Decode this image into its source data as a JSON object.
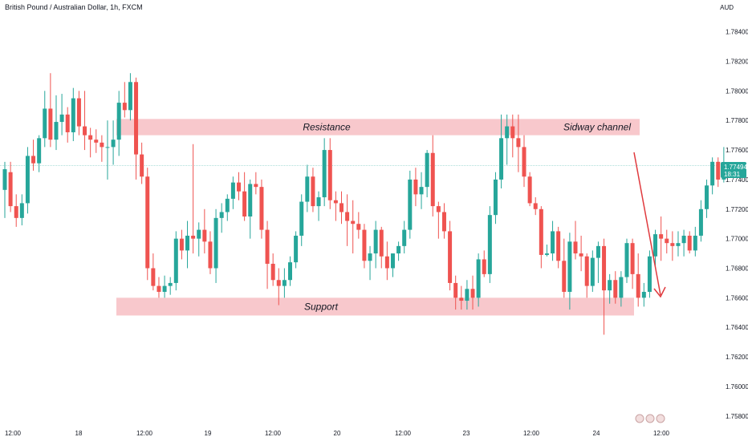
{
  "header": {
    "title": "British Pound / Australian Dollar, 1h, FXCM",
    "currency": "AUD"
  },
  "chart_data": {
    "type": "candlestick",
    "title": "British Pound / Australian Dollar, 1h, FXCM",
    "ylim": [
      1.7575,
      1.7855
    ],
    "y_ticks": [
      "1.78400",
      "1.78200",
      "1.78000",
      "1.77800",
      "1.77600",
      "1.77400",
      "1.77200",
      "1.77000",
      "1.76800",
      "1.76600",
      "1.76400",
      "1.76200",
      "1.76000",
      "1.75800"
    ],
    "x_ticks": [
      "12:00",
      "18",
      "12:00",
      "19",
      "12:00",
      "20",
      "12:00",
      "23",
      "12:00",
      "24",
      "12:00"
    ],
    "grid": false,
    "last_price": {
      "value": "1.77494",
      "countdown": "18:31"
    },
    "zones": [
      {
        "label": "Resistance",
        "low": 1.777,
        "high": 1.7781,
        "color": "#f8c8cc"
      },
      {
        "label": "Support",
        "low": 1.7648,
        "high": 1.766,
        "color": "#f8c8cc"
      }
    ],
    "annotation": {
      "text": "Sidway channel"
    },
    "colors": {
      "up": "#26a69a",
      "down": "#ef5350",
      "arrow": "#e03a3e"
    },
    "candles": [
      [
        1.7733,
        1.7752,
        1.7714,
        1.7747
      ],
      [
        1.7745,
        1.7752,
        1.7718,
        1.7722
      ],
      [
        1.7722,
        1.773,
        1.7708,
        1.7714
      ],
      [
        1.7714,
        1.773,
        1.7709,
        1.7724
      ],
      [
        1.7724,
        1.7762,
        1.7717,
        1.7756
      ],
      [
        1.7756,
        1.7767,
        1.7746,
        1.7751
      ],
      [
        1.7751,
        1.777,
        1.7745,
        1.7768
      ],
      [
        1.7768,
        1.78,
        1.7762,
        1.7788
      ],
      [
        1.7788,
        1.7812,
        1.7762,
        1.7767
      ],
      [
        1.7767,
        1.7797,
        1.776,
        1.7779
      ],
      [
        1.7779,
        1.7798,
        1.777,
        1.7784
      ],
      [
        1.7784,
        1.7789,
        1.7765,
        1.7772
      ],
      [
        1.7772,
        1.7802,
        1.7766,
        1.7795
      ],
      [
        1.7795,
        1.78,
        1.777,
        1.7776
      ],
      [
        1.7776,
        1.78,
        1.776,
        1.777
      ],
      [
        1.777,
        1.7775,
        1.7755,
        1.7767
      ],
      [
        1.7767,
        1.7774,
        1.7758,
        1.7765
      ],
      [
        1.7765,
        1.777,
        1.7752,
        1.7762
      ],
      [
        1.7762,
        1.778,
        1.774,
        1.7762
      ],
      [
        1.7762,
        1.778,
        1.775,
        1.7767
      ],
      [
        1.7767,
        1.78,
        1.7756,
        1.7792
      ],
      [
        1.7792,
        1.7806,
        1.7782,
        1.7787
      ],
      [
        1.7787,
        1.7812,
        1.778,
        1.7806
      ],
      [
        1.7806,
        1.7809,
        1.774,
        1.7757
      ],
      [
        1.7757,
        1.7765,
        1.7737,
        1.7742
      ],
      [
        1.7742,
        1.7748,
        1.7672,
        1.768
      ],
      [
        1.768,
        1.769,
        1.7665,
        1.7668
      ],
      [
        1.7668,
        1.7674,
        1.766,
        1.7664
      ],
      [
        1.7664,
        1.7675,
        1.766,
        1.7668
      ],
      [
        1.7668,
        1.7674,
        1.7662,
        1.767
      ],
      [
        1.767,
        1.7705,
        1.7665,
        1.77
      ],
      [
        1.77,
        1.7706,
        1.7686,
        1.7692
      ],
      [
        1.7692,
        1.7712,
        1.768,
        1.7702
      ],
      [
        1.7702,
        1.7764,
        1.769,
        1.77
      ],
      [
        1.77,
        1.7711,
        1.7688,
        1.7706
      ],
      [
        1.7706,
        1.772,
        1.769,
        1.7698
      ],
      [
        1.7698,
        1.7705,
        1.7676,
        1.768
      ],
      [
        1.768,
        1.772,
        1.767,
        1.7714
      ],
      [
        1.7714,
        1.7724,
        1.7704,
        1.7718
      ],
      [
        1.7718,
        1.773,
        1.7712,
        1.7727
      ],
      [
        1.7727,
        1.7742,
        1.772,
        1.7738
      ],
      [
        1.7738,
        1.7745,
        1.7726,
        1.7732
      ],
      [
        1.7732,
        1.7745,
        1.7712,
        1.7715
      ],
      [
        1.7715,
        1.774,
        1.77,
        1.7737
      ],
      [
        1.7737,
        1.7745,
        1.773,
        1.7735
      ],
      [
        1.7735,
        1.774,
        1.77,
        1.7706
      ],
      [
        1.7706,
        1.7712,
        1.7666,
        1.7683
      ],
      [
        1.7683,
        1.769,
        1.7668,
        1.7672
      ],
      [
        1.7672,
        1.768,
        1.7655,
        1.7668
      ],
      [
        1.7668,
        1.768,
        1.766,
        1.7672
      ],
      [
        1.7672,
        1.7688,
        1.7668,
        1.7684
      ],
      [
        1.7684,
        1.7705,
        1.768,
        1.7702
      ],
      [
        1.7702,
        1.773,
        1.7695,
        1.7725
      ],
      [
        1.7725,
        1.775,
        1.7718,
        1.7742
      ],
      [
        1.7742,
        1.7748,
        1.7718,
        1.7722
      ],
      [
        1.7722,
        1.7732,
        1.7712,
        1.7728
      ],
      [
        1.7728,
        1.7768,
        1.7722,
        1.776
      ],
      [
        1.776,
        1.7768,
        1.772,
        1.7726
      ],
      [
        1.7726,
        1.7732,
        1.7712,
        1.7724
      ],
      [
        1.7724,
        1.7732,
        1.771,
        1.7718
      ],
      [
        1.7718,
        1.773,
        1.7695,
        1.7712
      ],
      [
        1.7712,
        1.7726,
        1.769,
        1.771
      ],
      [
        1.771,
        1.7718,
        1.77,
        1.7706
      ],
      [
        1.7706,
        1.771,
        1.768,
        1.7685
      ],
      [
        1.7685,
        1.7695,
        1.7672,
        1.769
      ],
      [
        1.769,
        1.7712,
        1.768,
        1.7706
      ],
      [
        1.7706,
        1.7708,
        1.768,
        1.7688
      ],
      [
        1.7688,
        1.7698,
        1.7672,
        1.768
      ],
      [
        1.768,
        1.769,
        1.7674,
        1.769
      ],
      [
        1.769,
        1.7698,
        1.7685,
        1.7695
      ],
      [
        1.7695,
        1.7712,
        1.769,
        1.7706
      ],
      [
        1.7706,
        1.7746,
        1.77,
        1.774
      ],
      [
        1.774,
        1.7748,
        1.7722,
        1.773
      ],
      [
        1.773,
        1.7745,
        1.772,
        1.7735
      ],
      [
        1.7735,
        1.776,
        1.7728,
        1.7758
      ],
      [
        1.7758,
        1.777,
        1.7715,
        1.7722
      ],
      [
        1.7722,
        1.7725,
        1.77,
        1.7718
      ],
      [
        1.7718,
        1.7724,
        1.77,
        1.7705
      ],
      [
        1.7705,
        1.7712,
        1.7665,
        1.767
      ],
      [
        1.767,
        1.7675,
        1.7652,
        1.766
      ],
      [
        1.766,
        1.7668,
        1.7652,
        1.7658
      ],
      [
        1.7658,
        1.7672,
        1.7652,
        1.7666
      ],
      [
        1.7666,
        1.7675,
        1.7652,
        1.766
      ],
      [
        1.766,
        1.769,
        1.7654,
        1.7686
      ],
      [
        1.7686,
        1.7692,
        1.7674,
        1.7676
      ],
      [
        1.7676,
        1.7722,
        1.767,
        1.7716
      ],
      [
        1.7716,
        1.7745,
        1.771,
        1.774
      ],
      [
        1.774,
        1.7784,
        1.7734,
        1.7768
      ],
      [
        1.7768,
        1.7784,
        1.775,
        1.7776
      ],
      [
        1.7776,
        1.7784,
        1.7755,
        1.7768
      ],
      [
        1.7768,
        1.7784,
        1.7745,
        1.7762
      ],
      [
        1.7762,
        1.777,
        1.7735,
        1.7742
      ],
      [
        1.7742,
        1.7745,
        1.7722,
        1.7724
      ],
      [
        1.7724,
        1.7728,
        1.7716,
        1.772
      ],
      [
        1.772,
        1.7722,
        1.768,
        1.7689
      ],
      [
        1.7689,
        1.7696,
        1.7688,
        1.769
      ],
      [
        1.769,
        1.7712,
        1.7685,
        1.7705
      ],
      [
        1.7705,
        1.7708,
        1.768,
        1.7685
      ],
      [
        1.7685,
        1.77,
        1.766,
        1.7664
      ],
      [
        1.7664,
        1.7704,
        1.7652,
        1.7698
      ],
      [
        1.7698,
        1.7712,
        1.7686,
        1.769
      ],
      [
        1.769,
        1.7702,
        1.7678,
        1.7688
      ],
      [
        1.7688,
        1.769,
        1.766,
        1.7668
      ],
      [
        1.7668,
        1.7692,
        1.7664,
        1.7687
      ],
      [
        1.7687,
        1.7698,
        1.767,
        1.7695
      ],
      [
        1.7695,
        1.77,
        1.7635,
        1.7665
      ],
      [
        1.7665,
        1.7676,
        1.7656,
        1.7672
      ],
      [
        1.7672,
        1.7678,
        1.7656,
        1.766
      ],
      [
        1.766,
        1.7678,
        1.7654,
        1.7674
      ],
      [
        1.7674,
        1.77,
        1.767,
        1.7697
      ],
      [
        1.7697,
        1.77,
        1.7666,
        1.7676
      ],
      [
        1.7676,
        1.769,
        1.7654,
        1.766
      ],
      [
        1.766,
        1.767,
        1.7654,
        1.7664
      ],
      [
        1.7664,
        1.7692,
        1.766,
        1.7688
      ],
      [
        1.7688,
        1.7706,
        1.768,
        1.7703
      ],
      [
        1.7703,
        1.7715,
        1.7685,
        1.77
      ],
      [
        1.77,
        1.7706,
        1.769,
        1.7697
      ],
      [
        1.7697,
        1.7705,
        1.7685,
        1.7695
      ],
      [
        1.7695,
        1.7705,
        1.7688,
        1.7697
      ],
      [
        1.7697,
        1.7706,
        1.7688,
        1.7702
      ],
      [
        1.7702,
        1.7705,
        1.769,
        1.7692
      ],
      [
        1.7692,
        1.7708,
        1.7688,
        1.7702
      ],
      [
        1.7702,
        1.7726,
        1.7698,
        1.772
      ],
      [
        1.772,
        1.774,
        1.7714,
        1.7736
      ],
      [
        1.7736,
        1.7755,
        1.773,
        1.7752
      ],
      [
        1.7752,
        1.7755,
        1.7735,
        1.774
      ],
      [
        1.774,
        1.7762,
        1.7738,
        1.7749
      ]
    ]
  }
}
